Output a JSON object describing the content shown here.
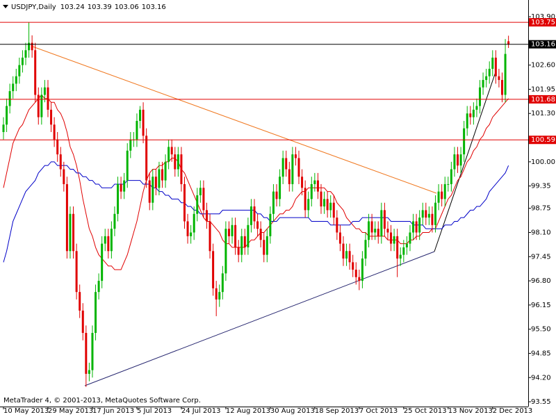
{
  "chart_data": {
    "type": "candlestick",
    "title": "USDJPY,Daily",
    "footer": "MetaTrader 4, © 2001-2013, MetaQuotes Software Corp.",
    "categories": [
      "10 May 2013",
      null,
      null,
      null,
      null,
      null,
      null,
      null,
      null,
      null,
      null,
      null,
      null,
      null,
      "29 May 2013",
      null,
      null,
      null,
      null,
      null,
      null,
      null,
      null,
      null,
      null,
      null,
      null,
      null,
      "17 Jun 2013",
      null,
      null,
      null,
      null,
      null,
      null,
      null,
      null,
      null,
      null,
      null,
      null,
      null,
      "5 Jul 2013",
      null,
      null,
      null,
      null,
      null,
      null,
      null,
      null,
      null,
      null,
      null,
      null,
      null,
      "24 Jul 2013",
      null,
      null,
      null,
      null,
      null,
      null,
      null,
      null,
      null,
      null,
      null,
      null,
      null,
      "12 Aug 2013",
      null,
      null,
      null,
      null,
      null,
      null,
      null,
      null,
      null,
      null,
      null,
      null,
      null,
      "30 Aug 2013",
      null,
      null,
      null,
      null,
      null,
      null,
      null,
      null,
      null,
      null,
      null,
      null,
      null,
      "18 Sep 2013",
      null,
      null,
      null,
      null,
      null,
      null,
      null,
      null,
      null,
      null,
      null,
      null,
      null,
      "7 Oct 2013",
      null,
      null,
      null,
      null,
      null,
      null,
      null,
      null,
      null,
      null,
      null,
      null,
      null,
      "25 Oct 2013",
      null,
      null,
      null,
      null,
      null,
      null,
      null,
      null,
      null,
      null,
      null,
      null,
      null,
      "13 Nov 2013",
      null,
      null,
      null,
      null,
      null,
      null,
      null,
      null,
      null,
      null,
      null,
      null,
      null,
      "2 Dec 2013",
      null,
      null,
      null,
      null,
      null
    ],
    "open": [
      100.8,
      101.0,
      101.5,
      101.9,
      102.1,
      102.3,
      102.6,
      102.8,
      103.0,
      103.2,
      103.0,
      101.8,
      101.2,
      101.8,
      102.0,
      101.4,
      101.0,
      100.6,
      100.2,
      99.8,
      99.4,
      97.6,
      98.6,
      97.6,
      96.5,
      96.0,
      95.4,
      94.3,
      94.4,
      95.4,
      96.5,
      96.8,
      97.8,
      98.0,
      97.6,
      98.2,
      98.6,
      99.4,
      99.2,
      99.5,
      100.3,
      100.6,
      100.6,
      101.1,
      101.4,
      100.7,
      99.5,
      98.9,
      99.6,
      99.3,
      99.8,
      99.5,
      100.0,
      100.4,
      100.2,
      99.8,
      100.2,
      99.4,
      98.4,
      98.0,
      98.1,
      98.6,
      99.1,
      99.3,
      98.7,
      98.4,
      97.6,
      96.6,
      96.3,
      96.5,
      97.0,
      98.2,
      98.0,
      98.3,
      97.7,
      97.5,
      98.0,
      97.7,
      98.3,
      98.8,
      98.4,
      98.2,
      97.9,
      97.5,
      98.0,
      98.6,
      99.2,
      99.0,
      99.6,
      100.1,
      99.8,
      99.4,
      100.2,
      100.1,
      99.6,
      99.3,
      98.7,
      99.0,
      99.4,
      99.5,
      99.2,
      98.8,
      99.0,
      98.7,
      98.9,
      98.5,
      98.1,
      97.8,
      97.4,
      97.6,
      97.3,
      97.1,
      96.9,
      96.8,
      97.4,
      97.9,
      98.4,
      98.1,
      98.2,
      98.0,
      98.7,
      98.2,
      98.1,
      97.8,
      98.0,
      97.4,
      97.5,
      97.7,
      97.8,
      98.1,
      98.4,
      98.1,
      98.5,
      98.7,
      98.5,
      98.6,
      98.3,
      98.9,
      99.2,
      99.0,
      99.4,
      99.4,
      99.8,
      100.2,
      99.9,
      100.2,
      100.9,
      101.3,
      101.2,
      101.4,
      101.5,
      102.0,
      102.2,
      102.3,
      102.5,
      102.8,
      102.3,
      102.2,
      101.8,
      103.24
    ],
    "high": [
      101.2,
      101.7,
      102.1,
      102.3,
      102.5,
      102.8,
      103.0,
      103.2,
      103.75,
      103.4,
      103.2,
      102.0,
      102.0,
      102.2,
      102.2,
      101.6,
      101.2,
      100.8,
      100.4,
      100.0,
      99.6,
      98.8,
      98.8,
      97.8,
      96.7,
      96.2,
      95.6,
      94.6,
      95.6,
      96.7,
      97.0,
      98.0,
      98.2,
      98.2,
      98.4,
      98.8,
      99.6,
      99.6,
      99.7,
      100.5,
      100.8,
      100.8,
      101.3,
      101.5,
      101.6,
      100.9,
      99.7,
      99.8,
      99.8,
      100.0,
      100.0,
      100.2,
      100.6,
      100.6,
      100.4,
      100.4,
      100.4,
      99.6,
      98.6,
      98.3,
      98.8,
      99.3,
      99.5,
      99.5,
      98.9,
      98.6,
      97.8,
      96.8,
      96.7,
      97.2,
      98.4,
      98.4,
      98.5,
      98.5,
      97.9,
      98.2,
      98.2,
      98.5,
      99.0,
      99.0,
      98.6,
      98.4,
      98.1,
      98.2,
      98.8,
      99.4,
      99.4,
      99.8,
      100.3,
      100.3,
      100.0,
      100.4,
      100.4,
      100.3,
      99.8,
      99.5,
      99.2,
      99.6,
      99.7,
      99.7,
      99.4,
      99.2,
      99.2,
      99.1,
      99.1,
      98.7,
      98.3,
      98.0,
      97.8,
      97.8,
      97.5,
      97.3,
      97.1,
      97.6,
      98.1,
      98.6,
      98.6,
      98.4,
      98.4,
      98.9,
      98.9,
      98.4,
      98.3,
      98.2,
      98.2,
      97.7,
      97.9,
      98.0,
      98.3,
      98.6,
      98.6,
      98.7,
      98.9,
      98.9,
      98.8,
      98.8,
      99.1,
      99.4,
      99.4,
      99.6,
      99.6,
      100.0,
      100.4,
      100.4,
      100.4,
      101.1,
      101.5,
      101.5,
      101.6,
      101.7,
      102.2,
      102.4,
      102.5,
      102.7,
      103.0,
      103.0,
      102.5,
      102.4,
      103.3,
      103.39
    ],
    "low": [
      100.6,
      100.8,
      101.3,
      101.7,
      101.9,
      102.1,
      102.4,
      102.6,
      102.8,
      102.8,
      101.6,
      101.0,
      101.0,
      101.6,
      101.2,
      100.8,
      100.4,
      100.0,
      99.6,
      99.2,
      97.4,
      97.4,
      97.4,
      96.3,
      95.8,
      95.2,
      93.95,
      94.1,
      94.2,
      95.2,
      96.3,
      96.6,
      97.6,
      97.4,
      97.4,
      98.0,
      98.4,
      99.0,
      99.0,
      99.3,
      100.1,
      100.4,
      100.4,
      100.9,
      100.5,
      99.3,
      98.7,
      98.7,
      99.1,
      99.1,
      99.3,
      99.3,
      99.8,
      100.0,
      99.6,
      99.6,
      99.2,
      98.2,
      97.8,
      97.8,
      97.9,
      98.4,
      98.9,
      98.5,
      98.2,
      97.4,
      96.4,
      95.85,
      96.1,
      96.3,
      96.8,
      97.8,
      97.8,
      97.5,
      97.3,
      97.3,
      97.5,
      97.5,
      98.1,
      98.2,
      98.0,
      97.7,
      97.3,
      97.3,
      97.8,
      98.4,
      98.8,
      98.8,
      99.4,
      99.6,
      99.2,
      99.2,
      99.9,
      99.4,
      99.1,
      98.5,
      98.5,
      98.8,
      99.2,
      99.0,
      98.6,
      98.6,
      98.5,
      98.5,
      98.3,
      97.9,
      97.6,
      97.2,
      97.2,
      97.1,
      96.9,
      96.7,
      96.55,
      96.6,
      97.2,
      97.7,
      97.9,
      97.9,
      97.8,
      97.8,
      98.0,
      97.9,
      97.6,
      97.6,
      96.9,
      97.2,
      97.3,
      97.5,
      97.6,
      97.9,
      97.9,
      97.9,
      98.3,
      98.3,
      98.3,
      98.1,
      98.1,
      98.7,
      98.8,
      98.8,
      99.2,
      99.2,
      99.6,
      99.7,
      99.7,
      100.0,
      100.7,
      101.0,
      101.0,
      101.2,
      101.3,
      101.8,
      102.0,
      102.1,
      102.3,
      102.1,
      102.0,
      101.6,
      101.6,
      103.06
    ],
    "close": [
      101.0,
      101.5,
      101.9,
      102.1,
      102.3,
      102.6,
      102.8,
      103.0,
      103.2,
      103.0,
      101.8,
      101.2,
      101.8,
      102.0,
      101.4,
      101.0,
      100.6,
      100.2,
      99.8,
      99.4,
      97.6,
      98.6,
      97.6,
      96.5,
      96.0,
      95.4,
      94.3,
      94.4,
      95.4,
      96.5,
      96.8,
      97.8,
      98.0,
      97.6,
      98.2,
      98.6,
      99.4,
      99.2,
      99.5,
      100.3,
      100.6,
      100.6,
      101.1,
      101.4,
      100.7,
      99.5,
      98.9,
      99.6,
      99.3,
      99.8,
      99.5,
      100.0,
      100.4,
      100.2,
      99.8,
      100.2,
      99.4,
      98.4,
      98.0,
      98.1,
      98.6,
      99.1,
      99.3,
      98.7,
      98.4,
      97.6,
      96.6,
      96.3,
      96.5,
      97.0,
      98.2,
      98.0,
      98.3,
      97.7,
      97.5,
      98.0,
      97.7,
      98.3,
      98.8,
      98.4,
      98.2,
      97.9,
      97.5,
      98.0,
      98.6,
      99.2,
      99.0,
      99.6,
      100.1,
      99.8,
      99.4,
      100.2,
      100.1,
      99.6,
      99.3,
      98.7,
      99.0,
      99.4,
      99.5,
      99.2,
      98.8,
      99.0,
      98.7,
      98.9,
      98.5,
      98.1,
      97.8,
      97.4,
      97.6,
      97.3,
      97.1,
      96.9,
      96.8,
      97.4,
      97.9,
      98.4,
      98.1,
      98.2,
      98.0,
      98.7,
      98.2,
      98.1,
      97.8,
      98.0,
      97.4,
      97.5,
      97.7,
      97.8,
      98.1,
      98.4,
      98.1,
      98.5,
      98.7,
      98.5,
      98.6,
      98.3,
      98.9,
      99.2,
      99.0,
      99.4,
      99.4,
      99.8,
      100.2,
      99.9,
      100.2,
      100.9,
      101.3,
      101.2,
      101.4,
      101.5,
      102.0,
      102.2,
      102.3,
      102.5,
      102.8,
      102.3,
      102.2,
      101.8,
      102.9,
      103.16
    ],
    "up_color": "#00b400",
    "down_color": "#e00000",
    "series": [
      {
        "type": "line",
        "color": "#e00000",
        "values": [
          99.3,
          99.7,
          100.1,
          100.5,
          100.7,
          100.9,
          101.0,
          101.2,
          101.4,
          101.5,
          101.6,
          101.7,
          101.8,
          101.7,
          101.7,
          101.6,
          101.6,
          101.4,
          101.3,
          101.1,
          100.8,
          100.4,
          100.2,
          99.9,
          99.5,
          99.0,
          98.6,
          98.2,
          98.0,
          97.7,
          97.5,
          97.4,
          97.3,
          97.2,
          97.2,
          97.1,
          97.1,
          97.1,
          97.3,
          97.5,
          97.8,
          98.1,
          98.4,
          98.8,
          99.2,
          99.5,
          99.7,
          99.8,
          99.8,
          99.9,
          99.9,
          100.0,
          100.0,
          100.1,
          100.1,
          100.0,
          99.8,
          99.7,
          99.5,
          99.3,
          99.1,
          98.9,
          98.7,
          98.5,
          98.4,
          98.4,
          98.3,
          98.2,
          98.1,
          97.9,
          97.8,
          97.8,
          97.7,
          97.7,
          97.7,
          97.7,
          97.7,
          97.8,
          97.9,
          97.9,
          98.0,
          98.1,
          98.1,
          98.2,
          98.3,
          98.4,
          98.5,
          98.6,
          98.6,
          98.7,
          98.7,
          98.8,
          99.0,
          99.1,
          99.2,
          99.2,
          99.3,
          99.3,
          99.3,
          99.3,
          99.3,
          99.3,
          99.2,
          99.2,
          99.1,
          98.9,
          98.8,
          98.7,
          98.5,
          98.4,
          98.3,
          98.2,
          98.2,
          98.1,
          98.1,
          98.0,
          98.0,
          98.0,
          98.0,
          98.0,
          98.0,
          97.9,
          97.9,
          97.9,
          97.9,
          97.8,
          97.8,
          97.8,
          97.9,
          97.9,
          98.0,
          98.0,
          98.1,
          98.1,
          98.1,
          98.2,
          98.2,
          98.4,
          98.6,
          98.8,
          99.0,
          99.1,
          99.3,
          99.5,
          99.6,
          99.8,
          100.0,
          100.1,
          100.3,
          100.4,
          100.6,
          100.7,
          100.9,
          101.0,
          101.2,
          101.3,
          101.4,
          101.5,
          101.6,
          101.7
        ]
      },
      {
        "type": "line",
        "color": "#0000c8",
        "values": [
          97.3,
          97.6,
          98.0,
          98.4,
          98.6,
          98.8,
          99.0,
          99.2,
          99.3,
          99.4,
          99.5,
          99.7,
          99.8,
          99.9,
          99.9,
          100.0,
          100.0,
          99.9,
          99.9,
          99.9,
          99.9,
          99.8,
          99.8,
          99.7,
          99.7,
          99.6,
          99.6,
          99.5,
          99.5,
          99.4,
          99.4,
          99.3,
          99.3,
          99.3,
          99.3,
          99.4,
          99.4,
          99.4,
          99.4,
          99.5,
          99.5,
          99.5,
          99.5,
          99.5,
          99.4,
          99.4,
          99.4,
          99.3,
          99.3,
          99.2,
          99.2,
          99.1,
          99.1,
          99.0,
          99.0,
          99.0,
          98.9,
          98.9,
          98.8,
          98.8,
          98.7,
          98.7,
          98.6,
          98.6,
          98.6,
          98.6,
          98.6,
          98.6,
          98.6,
          98.7,
          98.7,
          98.7,
          98.7,
          98.7,
          98.7,
          98.7,
          98.7,
          98.7,
          98.7,
          98.7,
          98.6,
          98.6,
          98.5,
          98.5,
          98.4,
          98.4,
          98.4,
          98.5,
          98.5,
          98.5,
          98.5,
          98.5,
          98.5,
          98.5,
          98.5,
          98.5,
          98.5,
          98.4,
          98.4,
          98.4,
          98.4,
          98.4,
          98.4,
          98.3,
          98.3,
          98.3,
          98.3,
          98.3,
          98.3,
          98.3,
          98.4,
          98.4,
          98.4,
          98.5,
          98.5,
          98.5,
          98.5,
          98.5,
          98.5,
          98.5,
          98.5,
          98.5,
          98.4,
          98.4,
          98.4,
          98.4,
          98.4,
          98.4,
          98.4,
          98.3,
          98.3,
          98.3,
          98.3,
          98.2,
          98.2,
          98.2,
          98.2,
          98.2,
          98.2,
          98.3,
          98.3,
          98.3,
          98.4,
          98.4,
          98.5,
          98.5,
          98.6,
          98.7,
          98.7,
          98.8,
          98.8,
          98.9,
          99.0,
          99.2,
          99.3,
          99.4,
          99.5,
          99.6,
          99.7,
          99.9
        ]
      }
    ],
    "levels": [
      {
        "value": 103.75,
        "color": "#e00000"
      },
      {
        "value": 103.16,
        "color": "#000000"
      },
      {
        "value": 101.68,
        "color": "#e00000"
      },
      {
        "value": 100.59,
        "color": "#e00000"
      }
    ],
    "ylim": [
      93.42,
      104.35
    ],
    "yticks": [
      {
        "value": 103.9,
        "label": "103.90"
      },
      {
        "value": 102.6,
        "label": "102.60"
      },
      101.95,
      {
        "value": 101.3,
        "label": "101.30"
      },
      {
        "value": 100,
        "label": "100.00"
      },
      99.35,
      98.75,
      {
        "value": 98.1,
        "label": "98.10"
      },
      97.45,
      {
        "value": 96.8,
        "label": "96.80"
      },
      96.15,
      {
        "value": 95.5,
        "label": "95.50"
      },
      94.85,
      {
        "value": 94.2,
        "label": "94.20"
      },
      93.55
    ]
  }
}
